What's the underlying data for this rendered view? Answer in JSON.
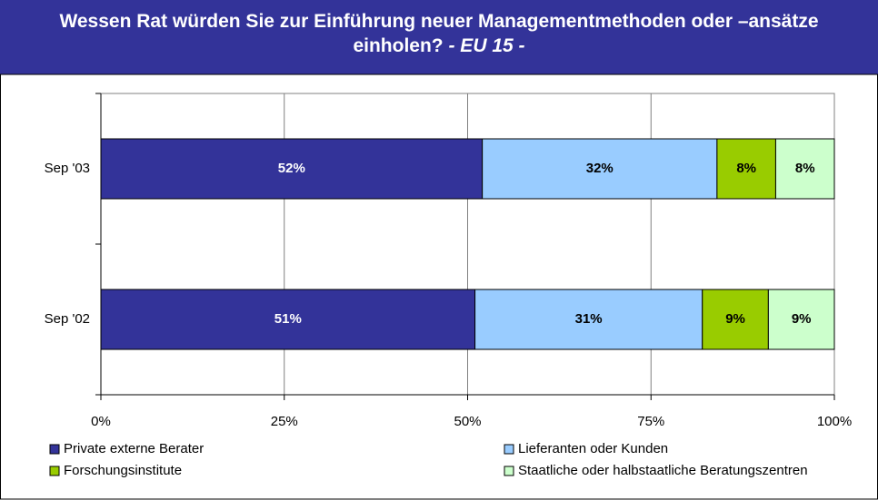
{
  "chart_data": {
    "type": "stacked-bar-horizontal",
    "title": "Wessen Rat würden Sie zur Einführung neuer Managementmethoden oder –ansätze einholen?",
    "subtitle": "- EU 15 -",
    "categories": [
      "Sep '03",
      "Sep '02"
    ],
    "series": [
      {
        "name": "Private externe Berater",
        "color": "#333399",
        "values": [
          52,
          51
        ],
        "value_labels": [
          "52%",
          "51%"
        ]
      },
      {
        "name": "Lieferanten oder Kunden",
        "color": "#99ccff",
        "values": [
          32,
          31
        ],
        "value_labels": [
          "32%",
          "31%"
        ]
      },
      {
        "name": "Forschungsinstitute",
        "color": "#99cc00",
        "values": [
          8,
          9
        ],
        "value_labels": [
          "8%",
          "9%"
        ]
      },
      {
        "name": "Staatliche oder halbstaatliche Beratungszentren",
        "color": "#ccffcc",
        "values": [
          8,
          9
        ],
        "value_labels": [
          "8%",
          "9%"
        ]
      }
    ],
    "xlim": [
      0,
      100
    ],
    "xticks": [
      {
        "value": 0,
        "label": "0%"
      },
      {
        "value": 25,
        "label": "25%"
      },
      {
        "value": 50,
        "label": "50%"
      },
      {
        "value": 75,
        "label": "75%"
      },
      {
        "value": 100,
        "label": "100%"
      }
    ],
    "grid": true
  }
}
